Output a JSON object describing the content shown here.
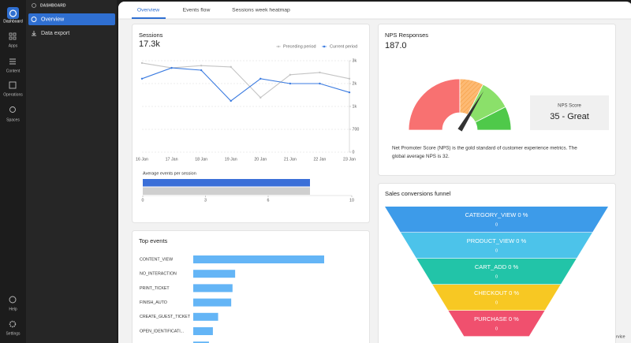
{
  "rail": {
    "items": [
      "Dashboard",
      "Apps",
      "Content",
      "Operations",
      "Spaces"
    ],
    "bottom": [
      "Help",
      "Settings"
    ]
  },
  "sidebar": {
    "heading": "DASHBOARD",
    "items": [
      "Overview",
      "Data export"
    ]
  },
  "tabs": [
    "Overview",
    "Events flow",
    "Sessions week heatmap"
  ],
  "sessions": {
    "title": "Sessions",
    "total": "17.3k",
    "chart": {
      "type": "line",
      "categories": [
        "16 Jan",
        "17 Jan",
        "18 Jan",
        "19 Jan",
        "20 Jan",
        "21 Jan",
        "22 Jan",
        "23 Jan"
      ],
      "series": [
        {
          "name": "Preceding period",
          "color": "#c4c4c4",
          "values": [
            2730,
            2580,
            2650,
            2610,
            1670,
            2370,
            2440,
            2250
          ]
        },
        {
          "name": "Current period",
          "color": "#3b7be0",
          "values": [
            2250,
            2580,
            2510,
            1570,
            2250,
            2100,
            2100,
            1830
          ]
        }
      ],
      "ylim": [
        0,
        2800
      ],
      "yticks": [
        0,
        700,
        {
          "value": 1400,
          "label": "1k"
        },
        {
          "value": 2100,
          "label": "2k"
        },
        {
          "value": 2800,
          "label": "3k"
        }
      ],
      "grid": true
    },
    "average": {
      "type": "bar",
      "title": "Average events per session",
      "values": [
        8,
        8
      ],
      "colors": [
        "#3b6fd8",
        "#cfcfcf"
      ],
      "xlim": [
        0,
        10
      ],
      "xticks": [
        0,
        3,
        6,
        10
      ]
    }
  },
  "top_events": {
    "title": "Top events",
    "chart": {
      "type": "bar",
      "categories": [
        "CONTENT_VIEW",
        "NO_INTERACTION",
        "PRINT_TICKET",
        "FINISH_AUTO",
        "CREATE_GUEST_TICKET",
        "OPEN_IDENTIFICATI...",
        null
      ],
      "values": [
        100,
        32,
        30,
        29,
        19,
        15,
        12
      ],
      "color": "#64b5f6"
    }
  },
  "nps": {
    "title": "NPS Responses",
    "total": "187.0",
    "gauge": {
      "type": "gauge",
      "min": -100,
      "max": 100,
      "bands": [
        {
          "from": -100,
          "to": 0,
          "color": "#f87171"
        },
        {
          "from": 0,
          "to": 30,
          "color": "#fdba74"
        },
        {
          "from": 30,
          "to": 70,
          "color": "#8be06a"
        },
        {
          "from": 70,
          "to": 100,
          "color": "#4fc94a"
        }
      ],
      "value": 35
    },
    "score_title": "NPS Score",
    "score": "35 - Great",
    "description": [
      "Net Promoter Score (NPS) is the gold standard of customer experience metrics. The",
      "global average NPS is 32."
    ]
  },
  "funnel": {
    "title": "Sales conversions funnel",
    "stages": [
      {
        "name": "CATEGORY_VIEW",
        "percent": 0,
        "percent_label": "0 %",
        "count": 0,
        "color": "#3d9be9"
      },
      {
        "name": "PRODUCT_VIEW",
        "percent": 0,
        "percent_label": "0 %",
        "count": 0,
        "color": "#4cc3ea"
      },
      {
        "name": "CART_ADD",
        "percent": 0,
        "percent_label": "0 %",
        "count": 0,
        "color": "#22c4a8"
      },
      {
        "name": "CHECKOUT",
        "percent": 0,
        "percent_label": "0 %",
        "count": 0,
        "color": "#f7c823"
      },
      {
        "name": "PURCHASE",
        "percent": 0,
        "percent_label": "0 %",
        "count": 0,
        "color": "#f0506e"
      }
    ]
  },
  "footer_fragment": "rvice"
}
